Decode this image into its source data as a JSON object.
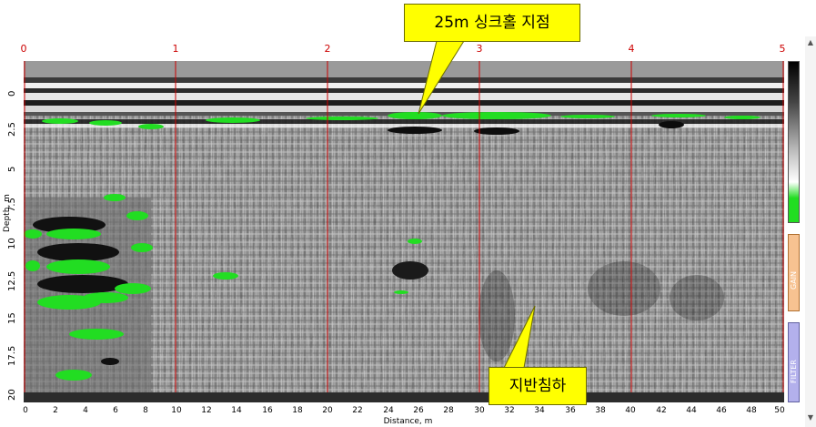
{
  "top_axis": {
    "ticks": [
      "0",
      "1",
      "2",
      "3",
      "4",
      "5"
    ]
  },
  "y_axis": {
    "label": "Depth, m",
    "ticks": [
      "0",
      "2.5",
      "5",
      "7.5",
      "10",
      "12.5",
      "15",
      "17.5",
      "20"
    ]
  },
  "x_axis": {
    "label": "Distance, m",
    "ticks": [
      "0",
      "2",
      "4",
      "6",
      "8",
      "10",
      "12",
      "14",
      "16",
      "18",
      "20",
      "22",
      "24",
      "26",
      "28",
      "30",
      "32",
      "34",
      "36",
      "38",
      "40",
      "42",
      "44",
      "46",
      "48",
      "50"
    ]
  },
  "callouts": {
    "sinkhole": "25m 싱크홀 지점",
    "subsidence": "지반침하"
  },
  "side_panel": {
    "gain_label": "GAIN",
    "filter_label": "FILTER"
  },
  "colors": {
    "marker_lines": "#cc0000",
    "highlight": "#22dd22",
    "callout_fill": "#ffff00"
  }
}
